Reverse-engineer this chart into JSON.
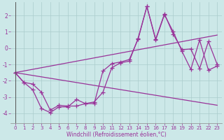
{
  "background_color": "#cce8e8",
  "grid_color": "#aacccc",
  "line_color": "#993399",
  "xlim": [
    -0.5,
    23.5
  ],
  "ylim": [
    -4.6,
    2.8
  ],
  "xticks": [
    0,
    1,
    2,
    3,
    4,
    5,
    6,
    7,
    8,
    9,
    10,
    11,
    12,
    13,
    14,
    15,
    16,
    17,
    18,
    19,
    20,
    21,
    22,
    23
  ],
  "yticks": [
    -4,
    -3,
    -2,
    -1,
    0,
    1,
    2
  ],
  "xlabel": "Windchill (Refroidissement éolien,°C)",
  "series1_x": [
    0,
    1,
    2,
    3,
    4,
    5,
    6,
    7,
    8,
    9,
    10,
    11,
    12,
    13,
    14,
    15,
    16,
    17,
    18,
    19,
    20,
    21,
    22,
    23
  ],
  "series1_y": [
    -1.5,
    -2.1,
    -2.2,
    -2.7,
    -3.8,
    -3.5,
    -3.55,
    -3.55,
    -3.4,
    -3.3,
    -2.7,
    -1.2,
    -0.9,
    -0.8,
    0.6,
    2.55,
    0.55,
    2.1,
    0.85,
    -0.1,
    -0.05,
    -1.25,
    0.4,
    -1.0
  ],
  "series2_x": [
    0,
    1,
    2,
    3,
    4,
    5,
    6,
    7,
    8,
    9,
    10,
    11,
    12,
    13,
    14,
    15,
    16,
    17,
    18,
    19,
    20,
    21,
    22,
    23
  ],
  "series2_y": [
    -1.5,
    -2.1,
    -2.55,
    -3.7,
    -3.95,
    -3.6,
    -3.6,
    -3.15,
    -3.4,
    -3.4,
    -1.4,
    -0.95,
    -0.85,
    -0.7,
    0.55,
    2.55,
    0.5,
    2.05,
    1.0,
    -0.2,
    -1.3,
    0.5,
    -1.35,
    -1.1
  ],
  "trend1_x": [
    0,
    23
  ],
  "trend1_y": [
    -1.5,
    0.8
  ],
  "trend2_x": [
    0,
    23
  ],
  "trend2_y": [
    -1.5,
    -3.5
  ]
}
